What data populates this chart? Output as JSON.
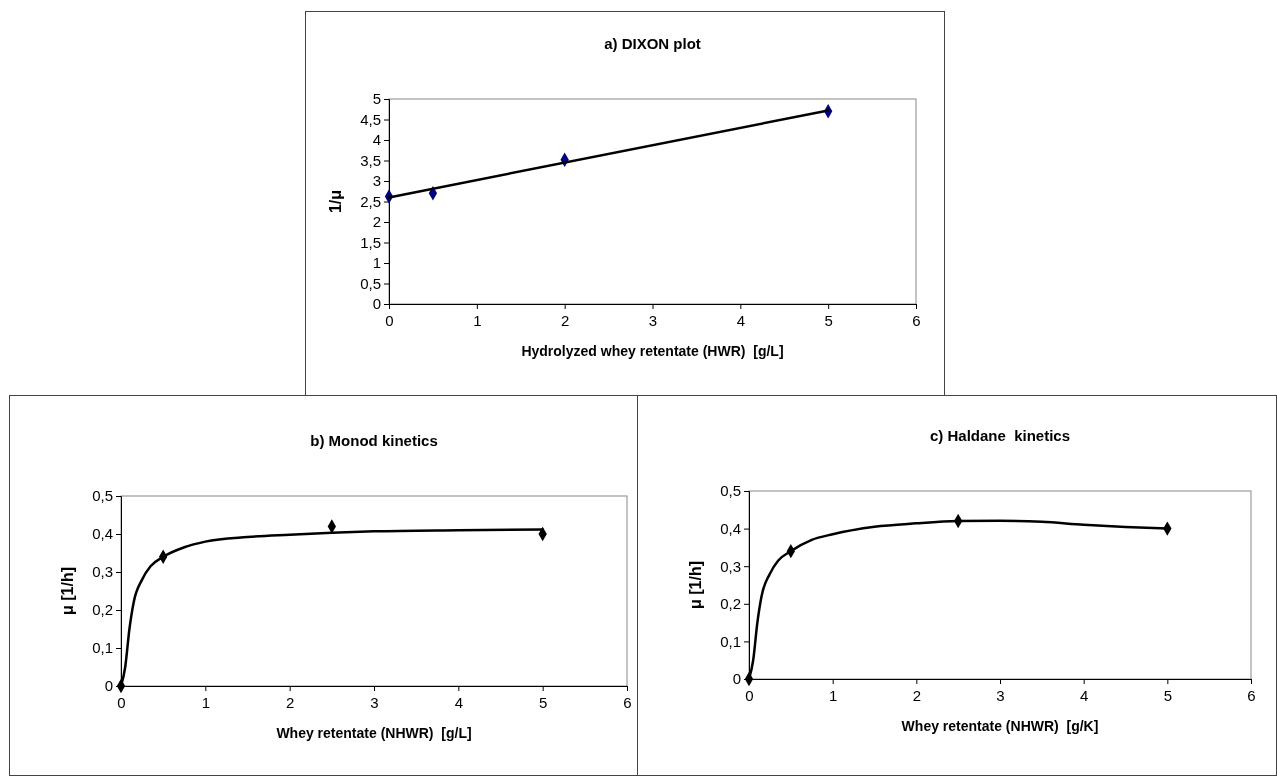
{
  "chart_data": [
    {
      "type": "scatter",
      "title": "a) DIXON plot",
      "xlabel": "Hydrolyzed whey retentate (HWR)  [g/L]",
      "ylabel": "1/μ",
      "xlim": [
        0,
        6
      ],
      "xticks": [
        0,
        1,
        2,
        3,
        4,
        5,
        6
      ],
      "ylim": [
        0,
        5
      ],
      "yticks": [
        0,
        {
          "value": 0.5,
          "label": "0,5"
        },
        1,
        {
          "value": 1.5,
          "label": "1,5"
        },
        2,
        {
          "value": 2.5,
          "label": "2,5"
        },
        3,
        {
          "value": 3.5,
          "label": "3,5"
        },
        4,
        {
          "value": 4.5,
          "label": "4,5"
        },
        5
      ],
      "grid": false,
      "series": [
        {
          "color": "#000080",
          "marker": "diamond",
          "x": [
            0,
            0.5,
            2,
            5
          ],
          "values": [
            2.62,
            2.7,
            3.52,
            4.7
          ]
        },
        {
          "type": "line",
          "color": "#000000",
          "marker": "none",
          "line_style": "solid",
          "x": [
            0,
            5
          ],
          "values": [
            2.6,
            4.72
          ]
        }
      ]
    },
    {
      "type": "scatter",
      "title": "b) Monod kinetics",
      "xlabel": "Whey retentate (NHWR)  [g/L]",
      "ylabel": "μ [1/h]",
      "xlim": [
        0,
        6
      ],
      "xticks": [
        0,
        1,
        2,
        3,
        4,
        5,
        6
      ],
      "ylim": [
        0,
        0.5
      ],
      "yticks": [
        0,
        {
          "value": 0.1,
          "label": "0,1"
        },
        {
          "value": 0.2,
          "label": "0,2"
        },
        {
          "value": 0.3,
          "label": "0,3"
        },
        {
          "value": 0.4,
          "label": "0,4"
        },
        {
          "value": 0.5,
          "label": "0,5"
        }
      ],
      "grid": false,
      "series": [
        {
          "color": "#000000",
          "marker": "diamond",
          "x": [
            0,
            0.5,
            2.5,
            5
          ],
          "values": [
            0,
            0.34,
            0.42,
            0.4
          ]
        },
        {
          "type": "line",
          "color": "#000000",
          "marker": "none",
          "line_style": "solid",
          "x": [
            0,
            0.05,
            0.1,
            0.15,
            0.25,
            0.35,
            0.5,
            0.75,
            1,
            1.5,
            2,
            2.5,
            3,
            4,
            5
          ],
          "values": [
            0,
            0.05,
            0.15,
            0.22,
            0.28,
            0.315,
            0.34,
            0.365,
            0.38,
            0.392,
            0.398,
            0.403,
            0.407,
            0.41,
            0.412
          ]
        }
      ]
    },
    {
      "type": "scatter",
      "title": "c) Haldane  kinetics",
      "xlabel": "Whey retentate (NHWR)  [g/K]",
      "ylabel": "μ [1/h]",
      "xlim": [
        0,
        6
      ],
      "xticks": [
        0,
        1,
        2,
        3,
        4,
        5,
        6
      ],
      "ylim": [
        0,
        0.5
      ],
      "yticks": [
        0,
        {
          "value": 0.1,
          "label": "0,1"
        },
        {
          "value": 0.2,
          "label": "0,2"
        },
        {
          "value": 0.3,
          "label": "0,3"
        },
        {
          "value": 0.4,
          "label": "0,4"
        },
        {
          "value": 0.5,
          "label": "0,5"
        }
      ],
      "grid": false,
      "series": [
        {
          "color": "#000000",
          "marker": "diamond",
          "x": [
            0,
            0.5,
            2.5,
            5
          ],
          "values": [
            0,
            0.34,
            0.42,
            0.4
          ]
        },
        {
          "type": "line",
          "color": "#000000",
          "marker": "none",
          "line_style": "solid",
          "x": [
            0,
            0.05,
            0.1,
            0.15,
            0.25,
            0.35,
            0.5,
            0.75,
            1,
            1.5,
            2,
            2.5,
            3,
            3.5,
            4,
            4.5,
            5
          ],
          "values": [
            0,
            0.05,
            0.15,
            0.22,
            0.28,
            0.315,
            0.34,
            0.37,
            0.385,
            0.405,
            0.414,
            0.42,
            0.421,
            0.418,
            0.41,
            0.404,
            0.4
          ]
        }
      ]
    }
  ]
}
